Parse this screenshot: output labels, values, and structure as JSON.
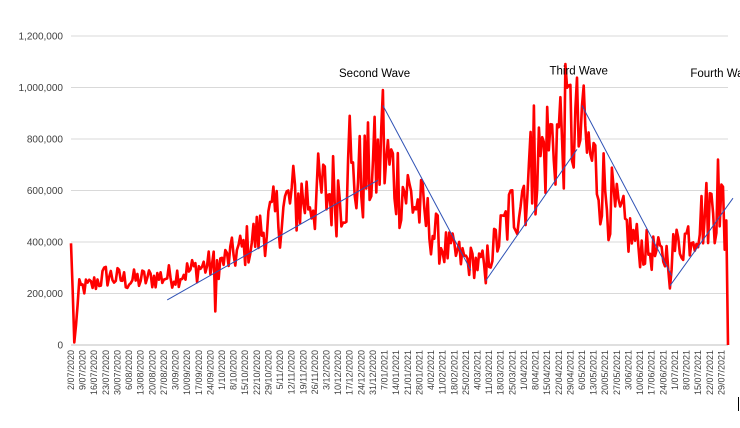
{
  "chart_data": {
    "type": "line",
    "title": "",
    "xlabel": "",
    "ylabel": "",
    "ylim": [
      0,
      1200000
    ],
    "yticks": [
      {
        "value": 0,
        "label": "0"
      },
      {
        "value": 200000,
        "label": "200,000"
      },
      {
        "value": 400000,
        "label": "400,000"
      },
      {
        "value": 600000,
        "label": "600,000"
      },
      {
        "value": 800000,
        "label": "800,000"
      },
      {
        "value": 1000000,
        "label": "1,000,000"
      },
      {
        "value": 1200000,
        "label": "1,200,000"
      }
    ],
    "grid": true,
    "x_start": "2020-07-02",
    "x_end": "2021-08-02",
    "xticks": [
      "2/07/2020",
      "9/07/2020",
      "16/07/2020",
      "23/07/2020",
      "30/07/2020",
      "6/08/2020",
      "13/08/2020",
      "20/08/2020",
      "27/08/2020",
      "3/09/2020",
      "10/09/2020",
      "17/09/2020",
      "24/09/2020",
      "1/10/2020",
      "8/10/2020",
      "15/10/2020",
      "22/10/2020",
      "29/10/2020",
      "5/11/2020",
      "12/11/2020",
      "19/11/2020",
      "26/11/2020",
      "3/12/2020",
      "10/12/2020",
      "17/12/2020",
      "24/12/2020",
      "31/12/2020",
      "7/01/2021",
      "14/01/2021",
      "21/01/2021",
      "28/01/2021",
      "4/02/2021",
      "11/02/2021",
      "18/02/2021",
      "25/02/2021",
      "4/03/2021",
      "11/03/2021",
      "18/03/2021",
      "25/03/2021",
      "1/04/2021",
      "8/04/2021",
      "15/04/2021",
      "22/04/2021",
      "29/04/2021",
      "6/05/2021",
      "13/05/2021",
      "20/05/2021",
      "27/05/2021",
      "3/06/2021",
      "10/06/2021",
      "17/06/2021",
      "24/06/2021",
      "1/07/2021",
      "8/07/2021",
      "15/07/2021",
      "22/07/2021",
      "29/07/2021"
    ],
    "series": [
      {
        "color": "#ff0000",
        "anchors": [
          {
            "x": "2020-07-02",
            "y": 390000
          },
          {
            "x": "2020-07-04",
            "y": 10000
          },
          {
            "x": "2020-07-07",
            "y": 220000
          },
          {
            "x": "2020-07-14",
            "y": 230000
          },
          {
            "x": "2020-07-23",
            "y": 270000
          },
          {
            "x": "2020-08-06",
            "y": 250000
          },
          {
            "x": "2020-08-20",
            "y": 260000
          },
          {
            "x": "2020-09-03",
            "y": 270000
          },
          {
            "x": "2020-09-17",
            "y": 300000
          },
          {
            "x": "2020-10-01",
            "y": 320000
          },
          {
            "x": "2020-10-15",
            "y": 380000
          },
          {
            "x": "2020-10-29",
            "y": 470000
          },
          {
            "x": "2020-11-12",
            "y": 560000
          },
          {
            "x": "2020-11-26",
            "y": 580000
          },
          {
            "x": "2020-12-10",
            "y": 600000
          },
          {
            "x": "2020-12-24",
            "y": 650000
          },
          {
            "x": "2021-01-03",
            "y": 700000
          },
          {
            "x": "2021-01-07",
            "y": 720000
          },
          {
            "x": "2021-01-14",
            "y": 650000
          },
          {
            "x": "2021-01-28",
            "y": 530000
          },
          {
            "x": "2021-02-11",
            "y": 380000
          },
          {
            "x": "2021-02-25",
            "y": 330000
          },
          {
            "x": "2021-03-08",
            "y": 310000
          },
          {
            "x": "2021-03-18",
            "y": 430000
          },
          {
            "x": "2021-04-01",
            "y": 620000
          },
          {
            "x": "2021-04-15",
            "y": 780000
          },
          {
            "x": "2021-04-29",
            "y": 860000
          },
          {
            "x": "2021-05-06",
            "y": 800000
          },
          {
            "x": "2021-05-13",
            "y": 700000
          },
          {
            "x": "2021-05-27",
            "y": 500000
          },
          {
            "x": "2021-06-10",
            "y": 380000
          },
          {
            "x": "2021-06-24",
            "y": 340000
          },
          {
            "x": "2021-07-08",
            "y": 420000
          },
          {
            "x": "2021-07-22",
            "y": 530000
          },
          {
            "x": "2021-07-29",
            "y": 560000
          },
          {
            "x": "2021-08-01",
            "y": 450000
          }
        ],
        "peaks": [
          {
            "x": "2020-07-02",
            "y": 395000
          },
          {
            "x": "2020-07-04",
            "y": 10000
          },
          {
            "x": "2020-09-27",
            "y": 130000
          },
          {
            "x": "2020-12-17",
            "y": 890000
          },
          {
            "x": "2021-01-06",
            "y": 990000
          },
          {
            "x": "2021-03-09",
            "y": 240000
          },
          {
            "x": "2021-04-07",
            "y": 930000
          },
          {
            "x": "2021-04-29",
            "y": 1010000
          },
          {
            "x": "2021-05-06",
            "y": 930000
          },
          {
            "x": "2021-06-28",
            "y": 220000
          },
          {
            "x": "2021-07-27",
            "y": 720000
          },
          {
            "x": "2021-07-31",
            "y": 370000
          },
          {
            "x": "2021-08-02",
            "y": 0
          }
        ]
      }
    ],
    "trendlines": [
      {
        "color": "#2f52b5",
        "points": [
          {
            "x": "2020-08-29",
            "y": 175000
          },
          {
            "x": "2021-01-03",
            "y": 640000
          }
        ]
      },
      {
        "color": "#2f52b5",
        "points": [
          {
            "x": "2021-01-06",
            "y": 930000
          },
          {
            "x": "2021-02-28",
            "y": 290000
          }
        ]
      },
      {
        "color": "#2f52b5",
        "points": [
          {
            "x": "2021-03-09",
            "y": 250000
          },
          {
            "x": "2021-05-03",
            "y": 760000
          }
        ]
      },
      {
        "color": "#2f52b5",
        "points": [
          {
            "x": "2021-05-06",
            "y": 930000
          },
          {
            "x": "2021-06-29",
            "y": 270000
          }
        ]
      },
      {
        "color": "#2f52b5",
        "points": [
          {
            "x": "2021-06-28",
            "y": 230000
          },
          {
            "x": "2021-08-05",
            "y": 570000
          }
        ]
      }
    ],
    "annotations": [
      {
        "text": "Second Wave",
        "x": "2021-01-01",
        "y": 1040000
      },
      {
        "text": "Third Wave",
        "x": "2021-05-04",
        "y": 1050000
      },
      {
        "text": "Fourth Wave",
        "x": "2021-07-30",
        "y": 1040000
      }
    ]
  }
}
